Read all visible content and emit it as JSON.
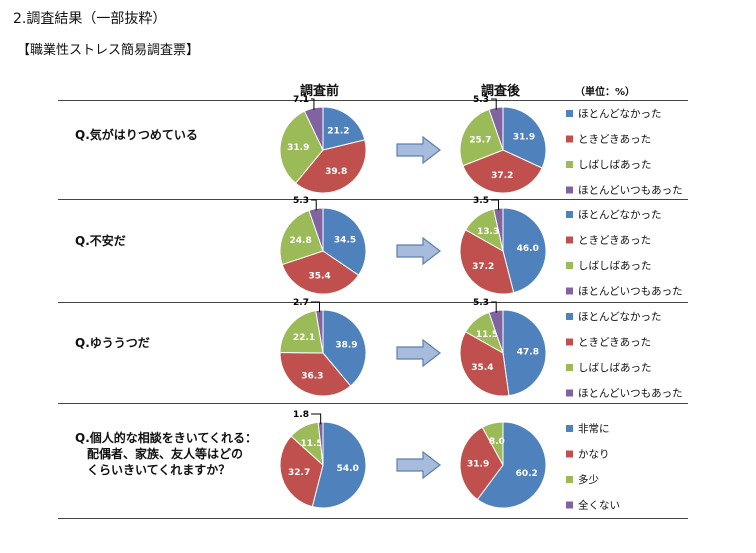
{
  "section_title": "2.調査結果（一部抜粋）",
  "subtitle": "【職業性ストレス簡易調査票】",
  "column_before": "調査前",
  "column_after": "調査後",
  "unit_label": "（単位：%）",
  "colors": {
    "c1": "#4f81bd",
    "c2": "#c0504d",
    "c3": "#9bbb59",
    "c4": "#8064a2"
  },
  "chart_data": [
    {
      "type": "pie",
      "question": "Q.気がはりつめている",
      "categories": [
        "ほとんどなかった",
        "ときどきあった",
        "しばしばあった",
        "ほとんどいつもあった"
      ],
      "before": [
        21.2,
        39.8,
        31.9,
        7.1
      ],
      "after": [
        31.9,
        37.2,
        25.7,
        5.3
      ]
    },
    {
      "type": "pie",
      "question": "Q.不安だ",
      "categories": [
        "ほとんどなかった",
        "ときどきあった",
        "しばしばあった",
        "ほとんどいつもあった"
      ],
      "before": [
        34.5,
        35.4,
        24.8,
        5.3
      ],
      "after": [
        46.0,
        37.2,
        13.3,
        3.5
      ]
    },
    {
      "type": "pie",
      "question": "Q.ゆううつだ",
      "categories": [
        "ほとんどなかった",
        "ときどきあった",
        "しばしばあった",
        "ほとんどいつもあった"
      ],
      "before": [
        38.9,
        36.3,
        22.1,
        2.7
      ],
      "after": [
        47.8,
        35.4,
        11.5,
        5.3
      ]
    },
    {
      "type": "pie",
      "question": "Q.個人的な相談をきいてくれる：\n　配偶者、家族、友人等はどの\n　くらいきいてくれますか？",
      "categories": [
        "非常に",
        "かなり",
        "多少",
        "全くない"
      ],
      "before": [
        54.0,
        32.7,
        11.5,
        1.8
      ],
      "after": [
        60.2,
        31.9,
        8.0,
        0.0
      ]
    }
  ]
}
